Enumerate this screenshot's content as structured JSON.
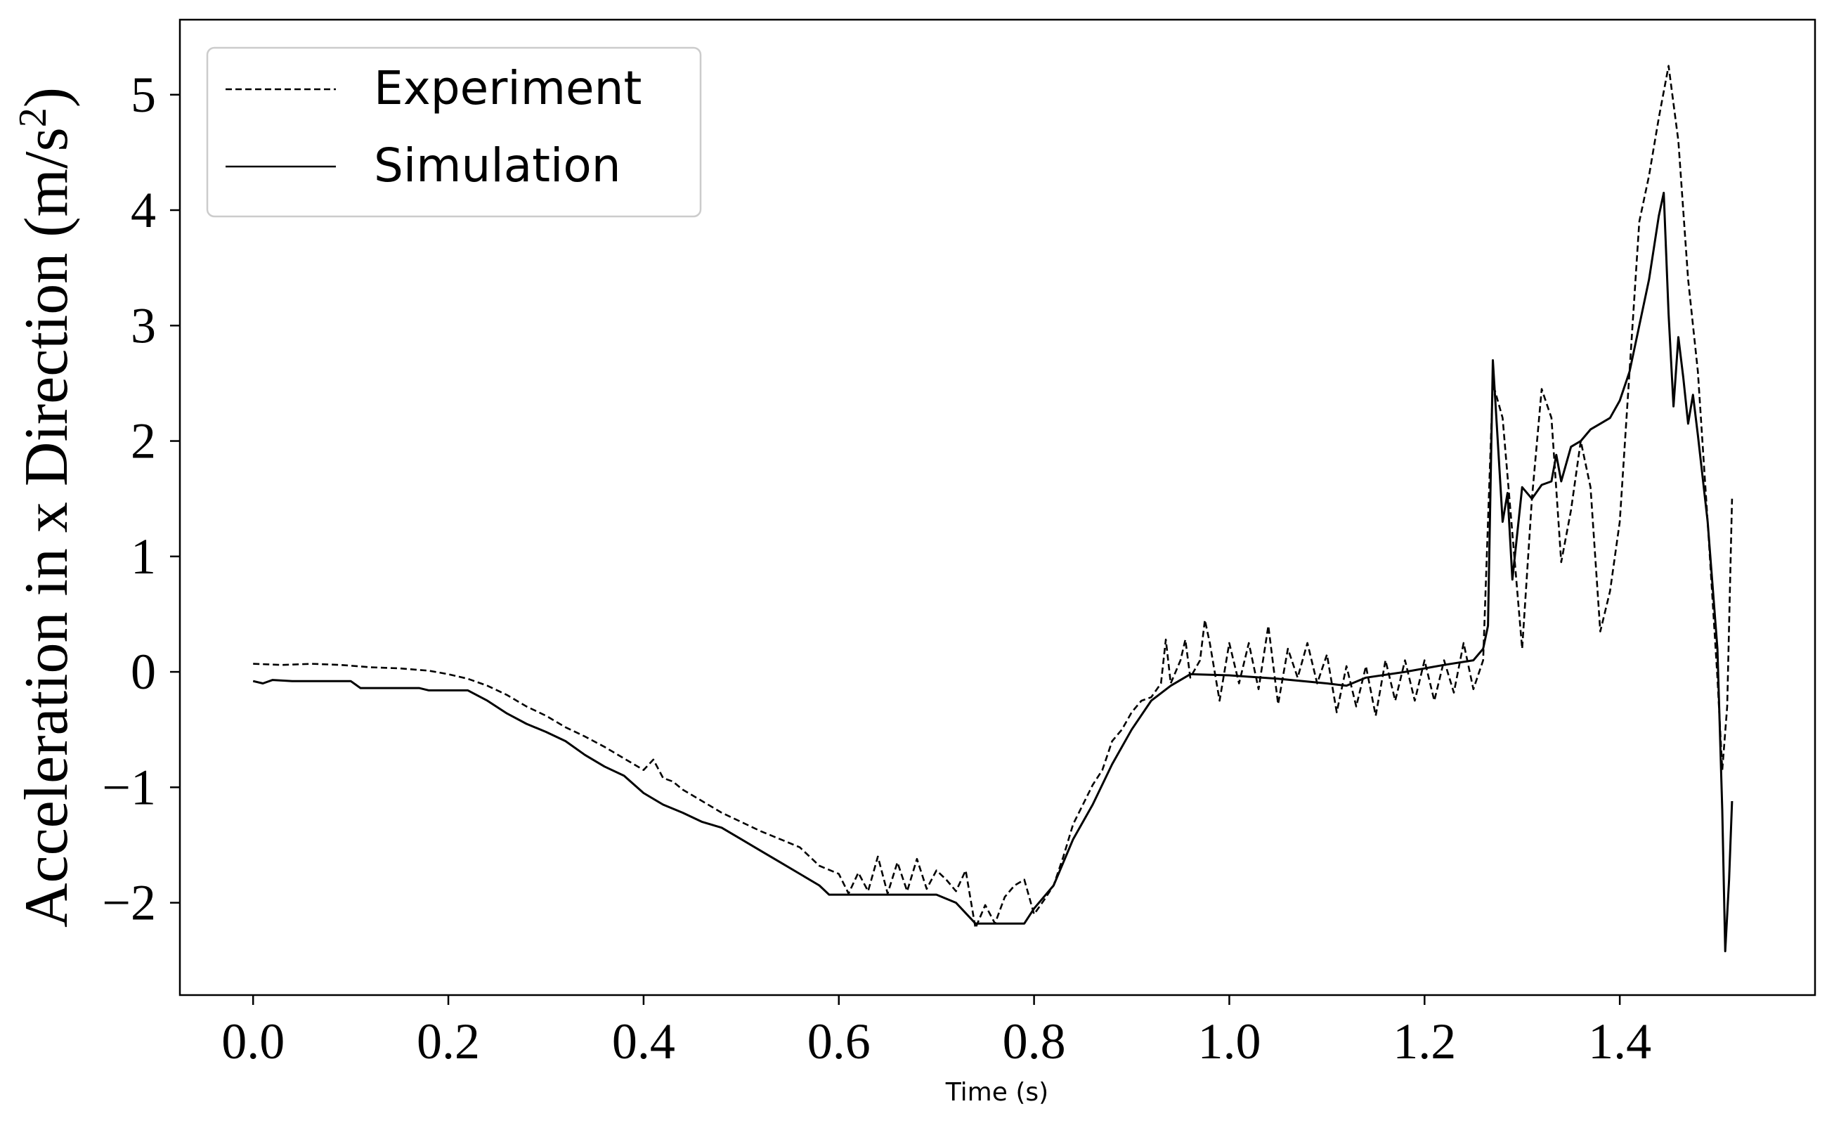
{
  "chart_data": {
    "type": "line",
    "title": "",
    "xlabel": "Time (s)",
    "ylabel_main": "Acceleration in x Direction (m/s",
    "ylabel_sup": "2",
    "ylabel_close": ")",
    "xlim": [
      -0.075,
      1.6
    ],
    "ylim": [
      -2.8,
      5.65
    ],
    "xticks": [
      0.0,
      0.2,
      0.4,
      0.6,
      0.8,
      1.0,
      1.2,
      1.4
    ],
    "xtick_labels": [
      "0.0",
      "0.2",
      "0.4",
      "0.6",
      "0.8",
      "1.0",
      "1.2",
      "1.4"
    ],
    "yticks": [
      -2,
      -1,
      0,
      1,
      2,
      3,
      4,
      5
    ],
    "ytick_labels": [
      "−2",
      "−1",
      "0",
      "1",
      "2",
      "3",
      "4",
      "5"
    ],
    "grid": false,
    "legend": "top-left",
    "series": [
      {
        "name": "Experiment",
        "style": "dashed",
        "color": "#000000",
        "points": [
          [
            0.0,
            0.07
          ],
          [
            0.03,
            0.06
          ],
          [
            0.06,
            0.07
          ],
          [
            0.09,
            0.06
          ],
          [
            0.12,
            0.04
          ],
          [
            0.15,
            0.03
          ],
          [
            0.18,
            0.01
          ],
          [
            0.2,
            -0.02
          ],
          [
            0.22,
            -0.06
          ],
          [
            0.24,
            -0.12
          ],
          [
            0.26,
            -0.2
          ],
          [
            0.28,
            -0.3
          ],
          [
            0.3,
            -0.38
          ],
          [
            0.32,
            -0.48
          ],
          [
            0.34,
            -0.56
          ],
          [
            0.36,
            -0.65
          ],
          [
            0.38,
            -0.75
          ],
          [
            0.4,
            -0.85
          ],
          [
            0.41,
            -0.76
          ],
          [
            0.42,
            -0.92
          ],
          [
            0.43,
            -0.95
          ],
          [
            0.44,
            -1.02
          ],
          [
            0.46,
            -1.12
          ],
          [
            0.48,
            -1.22
          ],
          [
            0.5,
            -1.3
          ],
          [
            0.52,
            -1.38
          ],
          [
            0.54,
            -1.45
          ],
          [
            0.56,
            -1.52
          ],
          [
            0.58,
            -1.68
          ],
          [
            0.6,
            -1.75
          ],
          [
            0.61,
            -1.92
          ],
          [
            0.62,
            -1.74
          ],
          [
            0.63,
            -1.9
          ],
          [
            0.64,
            -1.6
          ],
          [
            0.65,
            -1.92
          ],
          [
            0.66,
            -1.65
          ],
          [
            0.67,
            -1.9
          ],
          [
            0.68,
            -1.62
          ],
          [
            0.69,
            -1.88
          ],
          [
            0.7,
            -1.72
          ],
          [
            0.71,
            -1.8
          ],
          [
            0.72,
            -1.9
          ],
          [
            0.73,
            -1.72
          ],
          [
            0.74,
            -2.22
          ],
          [
            0.75,
            -2.02
          ],
          [
            0.76,
            -2.18
          ],
          [
            0.77,
            -1.95
          ],
          [
            0.78,
            -1.85
          ],
          [
            0.79,
            -1.8
          ],
          [
            0.8,
            -2.1
          ],
          [
            0.81,
            -1.98
          ],
          [
            0.82,
            -1.85
          ],
          [
            0.83,
            -1.6
          ],
          [
            0.84,
            -1.32
          ],
          [
            0.85,
            -1.15
          ],
          [
            0.86,
            -0.98
          ],
          [
            0.87,
            -0.85
          ],
          [
            0.88,
            -0.6
          ],
          [
            0.89,
            -0.5
          ],
          [
            0.9,
            -0.35
          ],
          [
            0.91,
            -0.25
          ],
          [
            0.92,
            -0.22
          ],
          [
            0.93,
            -0.1
          ],
          [
            0.935,
            0.28
          ],
          [
            0.94,
            -0.1
          ],
          [
            0.95,
            0.1
          ],
          [
            0.955,
            0.28
          ],
          [
            0.96,
            -0.05
          ],
          [
            0.97,
            0.1
          ],
          [
            0.975,
            0.45
          ],
          [
            0.98,
            0.25
          ],
          [
            0.99,
            -0.25
          ],
          [
            1.0,
            0.25
          ],
          [
            1.01,
            -0.1
          ],
          [
            1.02,
            0.25
          ],
          [
            1.03,
            -0.15
          ],
          [
            1.04,
            0.4
          ],
          [
            1.05,
            -0.28
          ],
          [
            1.06,
            0.2
          ],
          [
            1.07,
            -0.05
          ],
          [
            1.08,
            0.25
          ],
          [
            1.09,
            -0.1
          ],
          [
            1.1,
            0.15
          ],
          [
            1.11,
            -0.35
          ],
          [
            1.12,
            0.05
          ],
          [
            1.13,
            -0.3
          ],
          [
            1.14,
            0.05
          ],
          [
            1.15,
            -0.38
          ],
          [
            1.16,
            0.1
          ],
          [
            1.17,
            -0.25
          ],
          [
            1.18,
            0.1
          ],
          [
            1.19,
            -0.25
          ],
          [
            1.2,
            0.1
          ],
          [
            1.21,
            -0.25
          ],
          [
            1.22,
            0.1
          ],
          [
            1.23,
            -0.18
          ],
          [
            1.24,
            0.25
          ],
          [
            1.25,
            -0.15
          ],
          [
            1.26,
            0.1
          ],
          [
            1.27,
            2.5
          ],
          [
            1.28,
            2.2
          ],
          [
            1.29,
            1.2
          ],
          [
            1.3,
            0.2
          ],
          [
            1.31,
            1.5
          ],
          [
            1.32,
            2.45
          ],
          [
            1.33,
            2.2
          ],
          [
            1.34,
            0.95
          ],
          [
            1.35,
            1.4
          ],
          [
            1.36,
            2.0
          ],
          [
            1.37,
            1.6
          ],
          [
            1.38,
            0.35
          ],
          [
            1.39,
            0.7
          ],
          [
            1.4,
            1.3
          ],
          [
            1.41,
            2.6
          ],
          [
            1.42,
            3.9
          ],
          [
            1.43,
            4.3
          ],
          [
            1.44,
            4.8
          ],
          [
            1.45,
            5.25
          ],
          [
            1.46,
            4.6
          ],
          [
            1.47,
            3.4
          ],
          [
            1.48,
            2.6
          ],
          [
            1.49,
            1.3
          ],
          [
            1.5,
            -0.05
          ],
          [
            1.505,
            -0.85
          ],
          [
            1.51,
            -0.3
          ],
          [
            1.515,
            1.5
          ]
        ]
      },
      {
        "name": "Simulation",
        "style": "solid",
        "color": "#000000",
        "points": [
          [
            0.0,
            -0.08
          ],
          [
            0.01,
            -0.1
          ],
          [
            0.02,
            -0.07
          ],
          [
            0.04,
            -0.08
          ],
          [
            0.1,
            -0.08
          ],
          [
            0.11,
            -0.14
          ],
          [
            0.17,
            -0.14
          ],
          [
            0.18,
            -0.16
          ],
          [
            0.22,
            -0.16
          ],
          [
            0.24,
            -0.25
          ],
          [
            0.26,
            -0.36
          ],
          [
            0.28,
            -0.45
          ],
          [
            0.3,
            -0.52
          ],
          [
            0.32,
            -0.6
          ],
          [
            0.34,
            -0.72
          ],
          [
            0.36,
            -0.82
          ],
          [
            0.38,
            -0.9
          ],
          [
            0.4,
            -1.05
          ],
          [
            0.42,
            -1.15
          ],
          [
            0.44,
            -1.22
          ],
          [
            0.46,
            -1.3
          ],
          [
            0.48,
            -1.35
          ],
          [
            0.5,
            -1.45
          ],
          [
            0.52,
            -1.55
          ],
          [
            0.54,
            -1.65
          ],
          [
            0.56,
            -1.75
          ],
          [
            0.58,
            -1.85
          ],
          [
            0.59,
            -1.93
          ],
          [
            0.7,
            -1.93
          ],
          [
            0.72,
            -2.0
          ],
          [
            0.74,
            -2.18
          ],
          [
            0.79,
            -2.18
          ],
          [
            0.8,
            -2.05
          ],
          [
            0.82,
            -1.85
          ],
          [
            0.84,
            -1.45
          ],
          [
            0.86,
            -1.15
          ],
          [
            0.88,
            -0.8
          ],
          [
            0.9,
            -0.5
          ],
          [
            0.92,
            -0.25
          ],
          [
            0.94,
            -0.12
          ],
          [
            0.96,
            -0.02
          ],
          [
            1.0,
            -0.03
          ],
          [
            1.05,
            -0.06
          ],
          [
            1.1,
            -0.1
          ],
          [
            1.12,
            -0.12
          ],
          [
            1.14,
            -0.05
          ],
          [
            1.18,
            0.0
          ],
          [
            1.22,
            0.06
          ],
          [
            1.25,
            0.1
          ],
          [
            1.26,
            0.2
          ],
          [
            1.265,
            0.4
          ],
          [
            1.27,
            2.7
          ],
          [
            1.275,
            2.0
          ],
          [
            1.28,
            1.3
          ],
          [
            1.285,
            1.55
          ],
          [
            1.29,
            0.8
          ],
          [
            1.3,
            1.6
          ],
          [
            1.31,
            1.5
          ],
          [
            1.32,
            1.62
          ],
          [
            1.33,
            1.65
          ],
          [
            1.335,
            1.88
          ],
          [
            1.34,
            1.65
          ],
          [
            1.35,
            1.95
          ],
          [
            1.36,
            2.0
          ],
          [
            1.37,
            2.1
          ],
          [
            1.38,
            2.15
          ],
          [
            1.39,
            2.2
          ],
          [
            1.4,
            2.35
          ],
          [
            1.41,
            2.6
          ],
          [
            1.42,
            3.0
          ],
          [
            1.43,
            3.4
          ],
          [
            1.44,
            3.95
          ],
          [
            1.445,
            4.15
          ],
          [
            1.45,
            3.1
          ],
          [
            1.455,
            2.3
          ],
          [
            1.46,
            2.9
          ],
          [
            1.465,
            2.55
          ],
          [
            1.47,
            2.15
          ],
          [
            1.475,
            2.4
          ],
          [
            1.48,
            2.05
          ],
          [
            1.49,
            1.3
          ],
          [
            1.5,
            0.2
          ],
          [
            1.505,
            -1.2
          ],
          [
            1.508,
            -2.42
          ],
          [
            1.512,
            -1.8
          ],
          [
            1.515,
            -1.12
          ]
        ]
      }
    ]
  }
}
